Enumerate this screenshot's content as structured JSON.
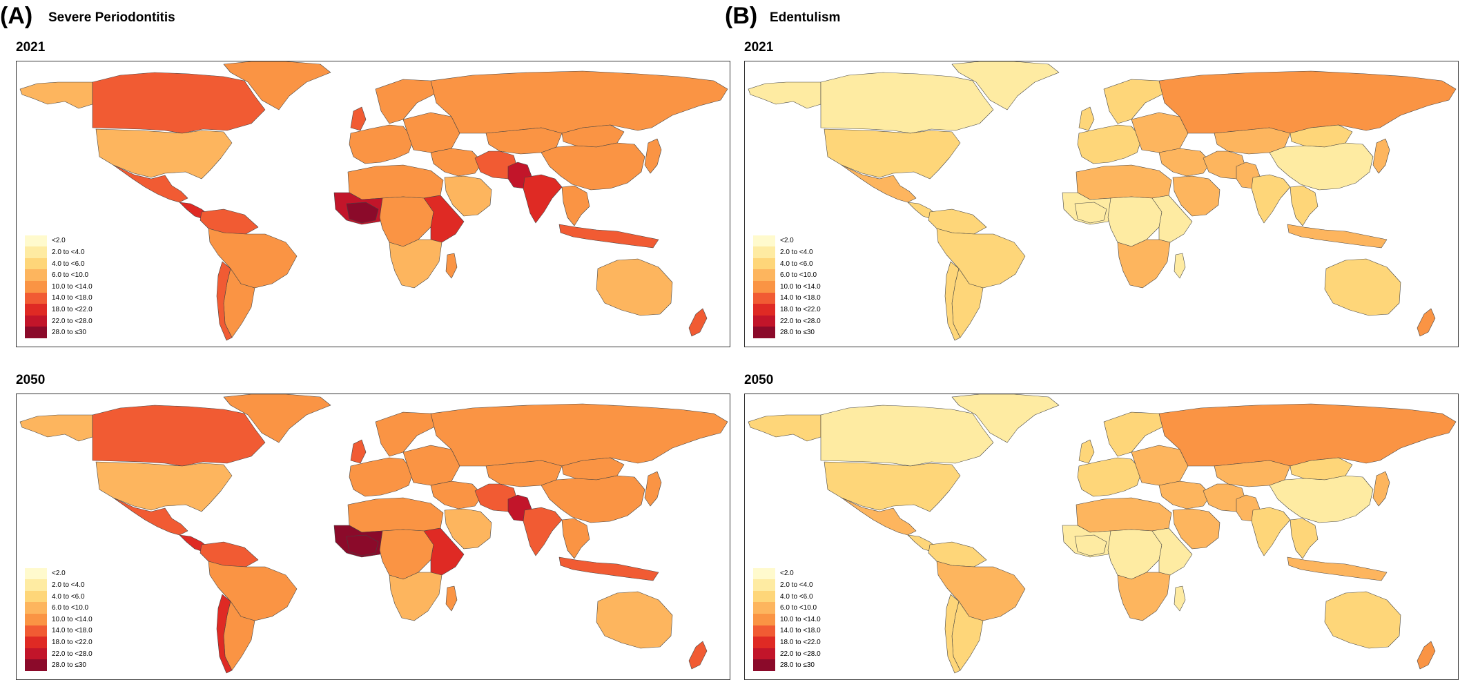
{
  "panels": [
    {
      "letter": "(A)",
      "title": "Severe Periodontitis",
      "maps": [
        {
          "year": "2021",
          "shades": {
            "canada": 5,
            "usa": 3,
            "alaska": 3,
            "greenland": 4,
            "mexico": 5,
            "central_america": 6,
            "south_america": 4,
            "south_america_north": 5,
            "argentina": 4,
            "chile": 5,
            "europe_west": 4,
            "europe_east": 4,
            "uk": 5,
            "scandinavia": 4,
            "russia": 4,
            "north_africa": 4,
            "west_africa": 7,
            "west_africa_core": 8,
            "central_africa": 4,
            "east_africa": 6,
            "southern_africa": 3,
            "madagascar": 4,
            "middle_east": 4,
            "arabia": 3,
            "iran_afg": 5,
            "india": 6,
            "pakistan": 7,
            "china": 4,
            "mongolia": 4,
            "central_asia": 4,
            "se_asia": 4,
            "indonesia": 5,
            "japan": 4,
            "australia": 3,
            "new_zealand": 5
          }
        },
        {
          "year": "2050",
          "shades": {
            "canada": 5,
            "usa": 3,
            "alaska": 3,
            "greenland": 4,
            "mexico": 5,
            "central_america": 6,
            "south_america": 4,
            "south_america_north": 5,
            "argentina": 4,
            "chile": 6,
            "europe_west": 4,
            "europe_east": 4,
            "uk": 5,
            "scandinavia": 4,
            "russia": 4,
            "north_africa": 4,
            "west_africa": 8,
            "west_africa_core": 8,
            "central_africa": 4,
            "east_africa": 6,
            "southern_africa": 3,
            "madagascar": 4,
            "middle_east": 4,
            "arabia": 3,
            "iran_afg": 5,
            "india": 5,
            "pakistan": 7,
            "china": 4,
            "mongolia": 4,
            "central_asia": 4,
            "se_asia": 4,
            "indonesia": 5,
            "japan": 4,
            "australia": 3,
            "new_zealand": 5
          }
        }
      ]
    },
    {
      "letter": "(B)",
      "title": "Edentulism",
      "maps": [
        {
          "year": "2021",
          "shades": {
            "canada": 1,
            "usa": 2,
            "alaska": 1,
            "greenland": 1,
            "mexico": 3,
            "central_america": 2,
            "south_america": 2,
            "south_america_north": 2,
            "argentina": 2,
            "chile": 2,
            "europe_west": 2,
            "europe_east": 3,
            "uk": 2,
            "scandinavia": 2,
            "russia": 4,
            "north_africa": 3,
            "west_africa": 1,
            "west_africa_core": 1,
            "central_africa": 1,
            "east_africa": 1,
            "southern_africa": 3,
            "madagascar": 1,
            "middle_east": 3,
            "arabia": 3,
            "iran_afg": 3,
            "india": 2,
            "pakistan": 3,
            "china": 1,
            "mongolia": 2,
            "central_asia": 3,
            "se_asia": 2,
            "indonesia": 3,
            "japan": 3,
            "australia": 2,
            "new_zealand": 4
          }
        },
        {
          "year": "2050",
          "shades": {
            "canada": 1,
            "usa": 2,
            "alaska": 2,
            "greenland": 1,
            "mexico": 3,
            "central_america": 2,
            "south_america": 3,
            "south_america_north": 2,
            "argentina": 2,
            "chile": 2,
            "europe_west": 2,
            "europe_east": 3,
            "uk": 2,
            "scandinavia": 2,
            "russia": 4,
            "north_africa": 3,
            "west_africa": 1,
            "west_africa_core": 1,
            "central_africa": 1,
            "east_africa": 1,
            "southern_africa": 3,
            "madagascar": 1,
            "middle_east": 3,
            "arabia": 3,
            "iran_afg": 3,
            "india": 2,
            "pakistan": 3,
            "china": 1,
            "mongolia": 2,
            "central_asia": 3,
            "se_asia": 2,
            "indonesia": 3,
            "japan": 3,
            "australia": 2,
            "new_zealand": 4
          }
        }
      ]
    }
  ],
  "legend": {
    "labels": [
      "<2.0",
      "2.0 to <4.0",
      "4.0 to <6.0",
      "6.0 to <10.0",
      "10.0 to <14.0",
      "14.0 to <18.0",
      "18.0 to <22.0",
      "22.0 to <28.0",
      "28.0 to ≤30"
    ],
    "colors": [
      "#FFFACD",
      "#FEEBA2",
      "#FED679",
      "#FDB55E",
      "#FA9444",
      "#F15B33",
      "#DF2A24",
      "#C2152A",
      "#8B0A2A"
    ]
  },
  "colors": {
    "frame": "#333333",
    "border": "#444444",
    "ocean": "#ffffff"
  }
}
